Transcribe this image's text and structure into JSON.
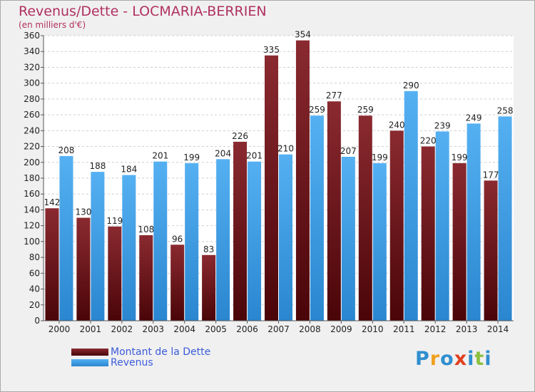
{
  "chart_data": {
    "type": "bar",
    "title": "Revenus/Dette - LOCMARIA-BERRIEN",
    "subtitle": "(en milliers d'€)",
    "categories": [
      "2000",
      "2001",
      "2002",
      "2003",
      "2004",
      "2005",
      "2006",
      "2007",
      "2008",
      "2009",
      "2010",
      "2011",
      "2012",
      "2013",
      "2014"
    ],
    "series": [
      {
        "name": "Montant de la Dette",
        "color": "#7a1c24",
        "values": [
          142,
          130,
          119,
          108,
          96,
          83,
          226,
          335,
          354,
          277,
          259,
          240,
          220,
          199,
          177
        ]
      },
      {
        "name": "Revenus",
        "color": "#3e9be6",
        "values": [
          208,
          188,
          184,
          201,
          199,
          204,
          201,
          210,
          259,
          207,
          199,
          290,
          239,
          249,
          258
        ]
      }
    ],
    "ylim": [
      0,
      360
    ],
    "yticks": [
      0,
      20,
      40,
      60,
      80,
      100,
      120,
      140,
      160,
      180,
      200,
      220,
      240,
      260,
      280,
      300,
      320,
      340,
      360
    ],
    "grid": true,
    "legend_position": "bottom-left"
  },
  "logo": {
    "letters": [
      {
        "char": "P",
        "color": "#2f8fd0"
      },
      {
        "char": "r",
        "color": "#f0a020"
      },
      {
        "char": "o",
        "color": "#2f8fd0"
      },
      {
        "char": "x",
        "color": "#e04020"
      },
      {
        "char": "i",
        "color": "#2f8fd0"
      },
      {
        "char": "t",
        "color": "#8cc040"
      },
      {
        "char": "i",
        "color": "#2f8fd0"
      }
    ]
  }
}
